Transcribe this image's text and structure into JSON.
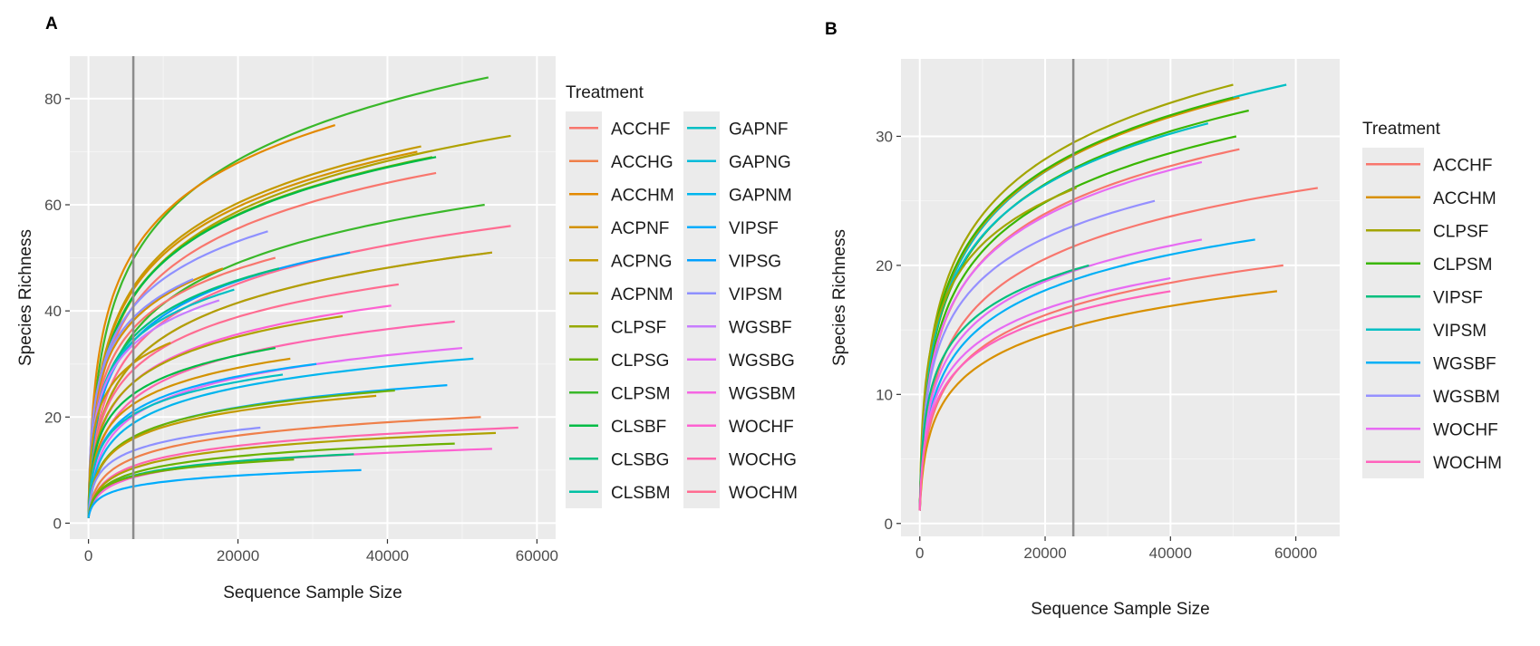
{
  "figure": {
    "panel_labels": [
      "A",
      "B"
    ]
  },
  "chart_data": [
    {
      "type": "line",
      "panel": "A",
      "xlabel": "Sequence Sample Size",
      "ylabel": "Species Richness",
      "xlim": [
        -2500,
        62500
      ],
      "ylim": [
        -3,
        88
      ],
      "xticks": [
        0,
        20000,
        40000,
        60000
      ],
      "xtick_labels": [
        "0",
        "20000",
        "40000",
        "60000"
      ],
      "yticks": [
        0,
        20,
        40,
        60,
        80
      ],
      "ytick_labels": [
        "0",
        "20",
        "40",
        "60",
        "80"
      ],
      "grid": true,
      "vline_x": 6000,
      "legend": {
        "title": "Treatment",
        "placement": "right",
        "columns": 2,
        "entries": [
          "ACCHF",
          "ACCHG",
          "ACCHM",
          "ACPNF",
          "ACPNG",
          "ACPNM",
          "CLPSF",
          "CLPSG",
          "CLPSM",
          "CLSBF",
          "CLSBG",
          "CLSBM",
          "GAPNF",
          "GAPNG",
          "GAPNM",
          "VIPSF",
          "VIPSG",
          "VIPSM",
          "WGSBF",
          "WGSBG",
          "WGSBM",
          "WOCHF",
          "WOCHG",
          "WOCHM"
        ],
        "colors": [
          "#F8766D",
          "#EF7F49",
          "#E38900",
          "#D39200",
          "#C49A00",
          "#AFA200",
          "#96A900",
          "#6BB100",
          "#3AB82A",
          "#00BC45",
          "#00BF7D",
          "#00C0A3",
          "#00BFC4",
          "#00BBDA",
          "#00B5EE",
          "#00ACFC",
          "#00A0FF",
          "#8E90FF",
          "#C77CFF",
          "#E76BF3",
          "#F565E3",
          "#FD61D1",
          "#FF65AE",
          "#FF6C91"
        ]
      },
      "series": [
        {
          "name": "CLPSM",
          "values": [
            [
              0,
              1
            ],
            [
              53500,
              84
            ]
          ]
        },
        {
          "name": "ACCHM",
          "values": [
            [
              0,
              1
            ],
            [
              33000,
              75
            ]
          ]
        },
        {
          "name": "ACPNM",
          "values": [
            [
              0,
              1
            ],
            [
              56500,
              73
            ]
          ]
        },
        {
          "name": "ACPNG",
          "values": [
            [
              0,
              1
            ],
            [
              44500,
              71
            ]
          ]
        },
        {
          "name": "ACPNF",
          "values": [
            [
              0,
              1
            ],
            [
              44000,
              70
            ]
          ]
        },
        {
          "name": "CLPSG",
          "values": [
            [
              0,
              1
            ],
            [
              46000,
              69
            ]
          ]
        },
        {
          "name": "CLSBF",
          "values": [
            [
              0,
              1
            ],
            [
              46500,
              69
            ]
          ]
        },
        {
          "name": "ACCHF",
          "values": [
            [
              0,
              1
            ],
            [
              46500,
              66
            ]
          ]
        },
        {
          "name": "CLPSM",
          "values": [
            [
              0,
              1
            ],
            [
              53000,
              60
            ]
          ]
        },
        {
          "name": "WOCHM",
          "values": [
            [
              0,
              1
            ],
            [
              56500,
              56
            ]
          ]
        },
        {
          "name": "VIPSM",
          "values": [
            [
              0,
              1
            ],
            [
              24000,
              55
            ]
          ]
        },
        {
          "name": "WOCHG",
          "values": [
            [
              0,
              1
            ],
            [
              54000,
              51
            ]
          ]
        },
        {
          "name": "ACPNM",
          "values": [
            [
              0,
              1
            ],
            [
              54000,
              51
            ]
          ]
        },
        {
          "name": "VIPSG",
          "values": [
            [
              0,
              1
            ],
            [
              35000,
              51
            ]
          ]
        },
        {
          "name": "ACCHF",
          "values": [
            [
              0,
              1
            ],
            [
              25000,
              50
            ]
          ]
        },
        {
          "name": "ACPNF",
          "values": [
            [
              0,
              1
            ],
            [
              18000,
              48
            ]
          ]
        },
        {
          "name": "CLSBG",
          "values": [
            [
              0,
              1
            ],
            [
              25500,
              48
            ]
          ]
        },
        {
          "name": "VIPSM",
          "values": [
            [
              0,
              1
            ],
            [
              14000,
              46
            ]
          ]
        },
        {
          "name": "GAPNF",
          "values": [
            [
              0,
              1
            ],
            [
              19500,
              44
            ]
          ]
        },
        {
          "name": "WOCHM",
          "values": [
            [
              0,
              1
            ],
            [
              41500,
              45
            ]
          ]
        },
        {
          "name": "WGSBF",
          "values": [
            [
              0,
              1
            ],
            [
              17500,
              42
            ]
          ]
        },
        {
          "name": "WOCHF",
          "values": [
            [
              0,
              1
            ],
            [
              40500,
              41
            ]
          ]
        },
        {
          "name": "ACPNM",
          "values": [
            [
              0,
              1
            ],
            [
              34000,
              39
            ]
          ]
        },
        {
          "name": "WOCHG",
          "values": [
            [
              0,
              1
            ],
            [
              49000,
              38
            ]
          ]
        },
        {
          "name": "ACPNG",
          "values": [
            [
              0,
              1
            ],
            [
              11000,
              34
            ]
          ]
        },
        {
          "name": "WGSBG",
          "values": [
            [
              0,
              1
            ],
            [
              50000,
              33
            ]
          ]
        },
        {
          "name": "CLSBF",
          "values": [
            [
              0,
              1
            ],
            [
              25000,
              33
            ]
          ]
        },
        {
          "name": "ACPNF",
          "values": [
            [
              0,
              1
            ],
            [
              27000,
              31
            ]
          ]
        },
        {
          "name": "GAPNM",
          "values": [
            [
              0,
              1
            ],
            [
              51500,
              31
            ]
          ]
        },
        {
          "name": "VIPSF",
          "values": [
            [
              0,
              1
            ],
            [
              30500,
              30
            ]
          ]
        },
        {
          "name": "GAPNF",
          "values": [
            [
              0,
              1
            ],
            [
              26000,
              28
            ]
          ]
        },
        {
          "name": "VIPSF",
          "values": [
            [
              0,
              1
            ],
            [
              48000,
              26
            ]
          ]
        },
        {
          "name": "CLPSG",
          "values": [
            [
              0,
              1
            ],
            [
              41000,
              25
            ]
          ]
        },
        {
          "name": "ACPNG",
          "values": [
            [
              0,
              1
            ],
            [
              38500,
              24
            ]
          ]
        },
        {
          "name": "ACCHG",
          "values": [
            [
              0,
              1
            ],
            [
              52500,
              20
            ]
          ]
        },
        {
          "name": "WOCHG",
          "values": [
            [
              0,
              1
            ],
            [
              57500,
              18
            ]
          ]
        },
        {
          "name": "ACPNM",
          "values": [
            [
              0,
              1
            ],
            [
              54500,
              17
            ]
          ]
        },
        {
          "name": "VIPSM",
          "values": [
            [
              0,
              1
            ],
            [
              23000,
              18
            ]
          ]
        },
        {
          "name": "CLPSG",
          "values": [
            [
              0,
              1
            ],
            [
              49000,
              15
            ]
          ]
        },
        {
          "name": "WOCHF",
          "values": [
            [
              0,
              1
            ],
            [
              54000,
              14
            ]
          ]
        },
        {
          "name": "CLSBG",
          "values": [
            [
              0,
              1
            ],
            [
              35500,
              13
            ]
          ]
        },
        {
          "name": "CLPSG",
          "values": [
            [
              0,
              1
            ],
            [
              27500,
              12
            ]
          ]
        },
        {
          "name": "VIPSF",
          "values": [
            [
              0,
              1
            ],
            [
              36500,
              10
            ]
          ]
        }
      ]
    },
    {
      "type": "line",
      "panel": "B",
      "xlabel": "Sequence Sample Size",
      "ylabel": "Species Richness",
      "xlim": [
        -3000,
        67000
      ],
      "ylim": [
        -1,
        36
      ],
      "xticks": [
        0,
        20000,
        40000,
        60000
      ],
      "xtick_labels": [
        "0",
        "20000",
        "40000",
        "60000"
      ],
      "yticks": [
        0,
        10,
        20,
        30
      ],
      "ytick_labels": [
        "0",
        "10",
        "20",
        "30"
      ],
      "grid": true,
      "vline_x": 24500,
      "legend": {
        "title": "Treatment",
        "placement": "right",
        "columns": 1,
        "entries": [
          "ACCHF",
          "ACCHM",
          "CLPSF",
          "CLPSM",
          "VIPSF",
          "VIPSM",
          "WGSBF",
          "WGSBM",
          "WOCHF",
          "WOCHM"
        ],
        "colors": [
          "#F8766D",
          "#D89000",
          "#A3A500",
          "#39B600",
          "#00BF7D",
          "#00BFC4",
          "#00B0F6",
          "#9590FF",
          "#E76BF3",
          "#FF62BC"
        ]
      },
      "series": [
        {
          "name": "VIPSM",
          "values": [
            [
              0,
              1
            ],
            [
              58500,
              34
            ]
          ]
        },
        {
          "name": "CLPSF",
          "values": [
            [
              0,
              1
            ],
            [
              50000,
              34
            ]
          ]
        },
        {
          "name": "ACCHM",
          "values": [
            [
              0,
              1
            ],
            [
              51000,
              33
            ]
          ]
        },
        {
          "name": "CLPSM",
          "values": [
            [
              0,
              1
            ],
            [
              50000,
              33
            ]
          ]
        },
        {
          "name": "CLPSM",
          "values": [
            [
              0,
              1
            ],
            [
              52500,
              32
            ]
          ]
        },
        {
          "name": "VIPSM",
          "values": [
            [
              0,
              1
            ],
            [
              46000,
              31
            ]
          ]
        },
        {
          "name": "CLPSM",
          "values": [
            [
              0,
              1
            ],
            [
              50500,
              30
            ]
          ]
        },
        {
          "name": "ACCHF",
          "values": [
            [
              0,
              1
            ],
            [
              51000,
              29
            ]
          ]
        },
        {
          "name": "WOCHF",
          "values": [
            [
              0,
              1
            ],
            [
              45000,
              28
            ]
          ]
        },
        {
          "name": "ACCHF",
          "values": [
            [
              0,
              1
            ],
            [
              63500,
              26
            ]
          ]
        },
        {
          "name": "CLPSF",
          "values": [
            [
              0,
              1
            ],
            [
              25000,
              26
            ]
          ]
        },
        {
          "name": "WGSBM",
          "values": [
            [
              0,
              1
            ],
            [
              37500,
              25
            ]
          ]
        },
        {
          "name": "WGSBF",
          "values": [
            [
              0,
              1
            ],
            [
              53500,
              22
            ]
          ]
        },
        {
          "name": "WOCHF",
          "values": [
            [
              0,
              1
            ],
            [
              45000,
              22
            ]
          ]
        },
        {
          "name": "ACCHF",
          "values": [
            [
              0,
              1
            ],
            [
              58000,
              20
            ]
          ]
        },
        {
          "name": "VIPSF",
          "values": [
            [
              0,
              1
            ],
            [
              27000,
              20
            ]
          ]
        },
        {
          "name": "WOCHF",
          "values": [
            [
              0,
              1
            ],
            [
              40000,
              19
            ]
          ]
        },
        {
          "name": "ACCHM",
          "values": [
            [
              0,
              1
            ],
            [
              57000,
              18
            ]
          ]
        },
        {
          "name": "WOCHM",
          "values": [
            [
              0,
              1
            ],
            [
              40000,
              18
            ]
          ]
        }
      ]
    }
  ]
}
